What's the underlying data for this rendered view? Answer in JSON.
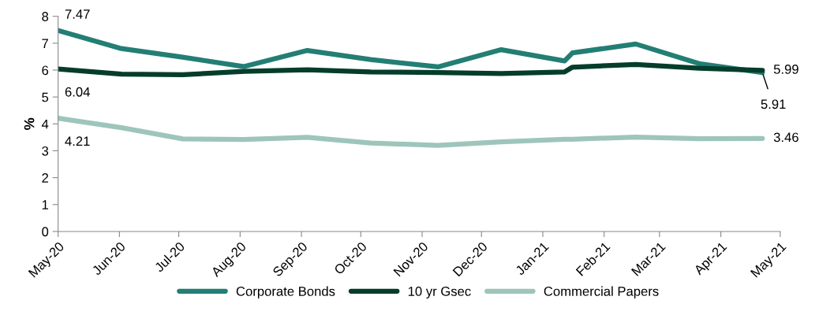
{
  "chart_data": {
    "type": "line",
    "ylabel": "%",
    "x": [
      "2020-05-01",
      "2020-06-02",
      "2020-07-03",
      "2020-08-03",
      "2020-09-04",
      "2020-10-06",
      "2020-11-09",
      "2020-12-11",
      "2021-01-12",
      "2021-01-16",
      "2021-02-17",
      "2021-03-21",
      "2021-04-22"
    ],
    "series": [
      {
        "name": "Corporate Bonds",
        "color": "#237e74",
        "values": [
          7.47,
          6.8,
          6.48,
          6.13,
          6.73,
          6.39,
          6.12,
          6.76,
          6.34,
          6.64,
          6.97,
          6.24,
          5.91
        ],
        "value_labels": [
          "7.47",
          null,
          null,
          null,
          null,
          null,
          null,
          null,
          null,
          null,
          null,
          null,
          "5.91"
        ]
      },
      {
        "name": "10 yr Gsec",
        "color": "#053d2b",
        "values": [
          6.04,
          5.85,
          5.83,
          5.95,
          6.01,
          5.93,
          5.91,
          5.87,
          5.93,
          6.11,
          6.21,
          6.07,
          5.99
        ],
        "value_labels": [
          "6.04",
          null,
          null,
          null,
          null,
          null,
          null,
          null,
          null,
          null,
          null,
          null,
          "5.99"
        ]
      },
      {
        "name": "Commercial Papers",
        "color": "#9ec5bb",
        "values": [
          4.21,
          3.86,
          3.44,
          3.42,
          3.5,
          3.29,
          3.2,
          3.33,
          3.43,
          3.43,
          3.51,
          3.45,
          3.46
        ],
        "value_labels": [
          "4.21",
          null,
          null,
          null,
          null,
          null,
          null,
          null,
          null,
          null,
          null,
          null,
          "3.46"
        ]
      }
    ],
    "xlim": [
      "2020-05-01",
      "2021-05-01"
    ],
    "xticks": [
      {
        "value": "2020-05-01",
        "label": "May-20"
      },
      {
        "value": "2020-06-01",
        "label": "Jun-20"
      },
      {
        "value": "2020-07-01",
        "label": "Jul-20"
      },
      {
        "value": "2020-08-01",
        "label": "Aug-20"
      },
      {
        "value": "2020-09-01",
        "label": "Sep-20"
      },
      {
        "value": "2020-10-01",
        "label": "Oct-20"
      },
      {
        "value": "2020-11-01",
        "label": "Nov-20"
      },
      {
        "value": "2020-12-01",
        "label": "Dec-20"
      },
      {
        "value": "2021-01-01",
        "label": "Jan-21"
      },
      {
        "value": "2021-02-01",
        "label": "Feb-21"
      },
      {
        "value": "2021-03-01",
        "label": "Mar-21"
      },
      {
        "value": "2021-04-01",
        "label": "Apr-21"
      },
      {
        "value": "2021-05-01",
        "label": "May-21"
      }
    ],
    "ylim": [
      0,
      8
    ],
    "yticks": [
      0,
      1,
      2,
      3,
      4,
      5,
      6,
      7,
      8
    ],
    "grid": false,
    "legend": "bottom",
    "marker": "none",
    "line_style": "solid"
  }
}
